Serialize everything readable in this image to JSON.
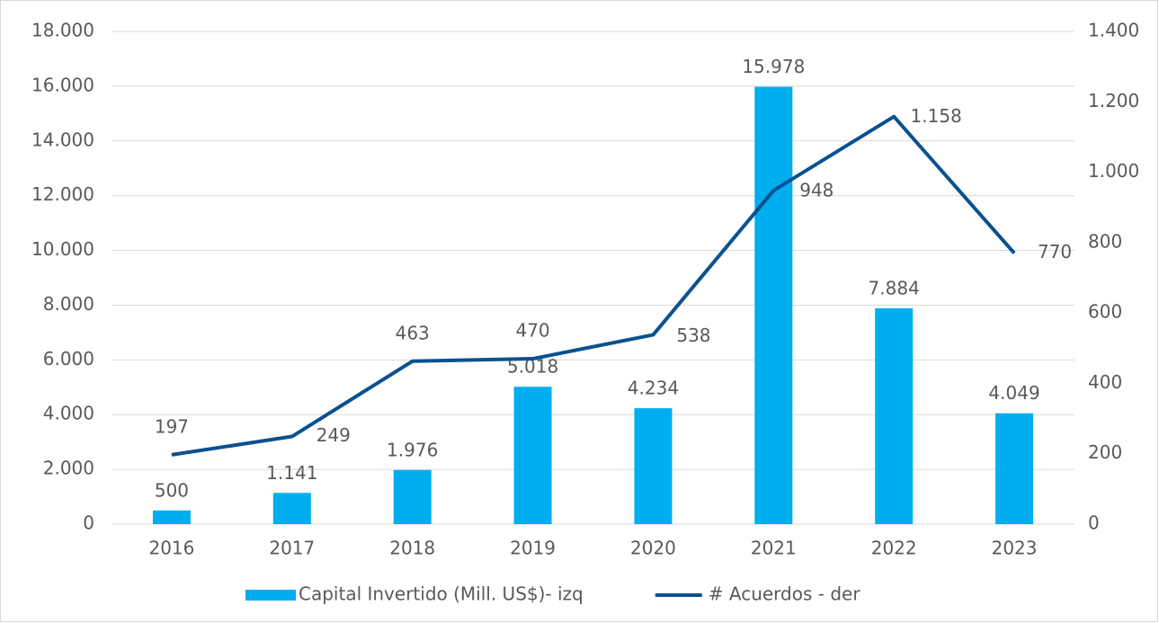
{
  "chart_data": {
    "type": "bar",
    "categories": [
      "2016",
      "2017",
      "2018",
      "2019",
      "2020",
      "2021",
      "2022",
      "2023"
    ],
    "series": [
      {
        "name": "Capital Invertido (Mill. US$)- izq",
        "type": "bar",
        "color": "#00aeef",
        "values": [
          500,
          1141,
          1976,
          5018,
          4234,
          15978,
          7884,
          4049
        ],
        "value_labels": [
          "500",
          "1.141",
          "1.976",
          "5.018",
          "4.234",
          "15.978",
          "7.884",
          "4.049"
        ]
      },
      {
        "name": "# Acuerdos - der",
        "type": "line",
        "axis": "y2",
        "color": "#0a5190",
        "values": [
          197,
          249,
          463,
          470,
          538,
          948,
          1158,
          770
        ],
        "value_labels": [
          "197",
          "249",
          "463",
          "470",
          "538",
          "948",
          "1.158",
          "770"
        ]
      }
    ],
    "ylim": [
      0,
      18000
    ],
    "yticks": [
      0,
      {
        "value": 2000,
        "label": "2.000"
      },
      {
        "value": 4000,
        "label": "4.000"
      },
      {
        "value": 6000,
        "label": "6.000"
      },
      {
        "value": 8000,
        "label": "8.000"
      },
      {
        "value": 10000,
        "label": "10.000"
      },
      {
        "value": 12000,
        "label": "12.000"
      },
      {
        "value": 14000,
        "label": "14.000"
      },
      {
        "value": 16000,
        "label": "16.000"
      },
      {
        "value": 18000,
        "label": "18.000"
      }
    ],
    "y2lim": [
      0,
      1400
    ],
    "y2ticks": [
      0,
      200,
      400,
      600,
      800,
      {
        "value": 1000,
        "label": "1.000"
      },
      {
        "value": 1200,
        "label": "1.200"
      },
      {
        "value": 1400,
        "label": "1.400"
      }
    ],
    "grid": true,
    "legend": "bottom"
  }
}
